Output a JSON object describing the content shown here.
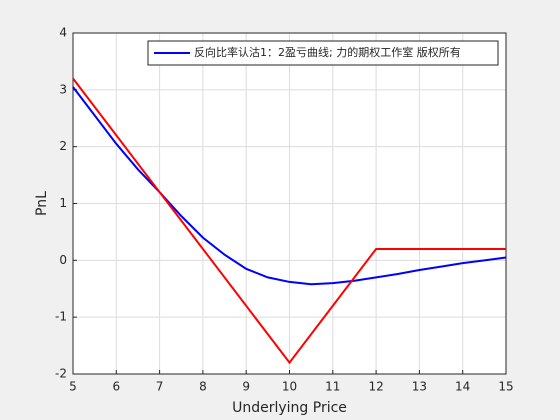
{
  "chart_data": {
    "type": "line",
    "xlabel": "Underlying Price",
    "ylabel": "PnL",
    "xlim": [
      5,
      15
    ],
    "xticks": [
      5,
      6,
      7,
      8,
      9,
      10,
      11,
      12,
      13,
      14,
      15
    ],
    "ylim": [
      -2,
      4
    ],
    "yticks": [
      -2,
      -1,
      0,
      1,
      2,
      3,
      4
    ],
    "grid": true,
    "legend": "upper right",
    "series": [
      {
        "name": "反向比率认沽1：2盈亏曲线; 力的期权工作室 版权所有",
        "color": "#0000ff",
        "x": [
          5,
          5.5,
          6,
          6.5,
          7,
          7.5,
          8,
          8.5,
          9,
          9.5,
          10,
          10.5,
          11,
          11.5,
          12,
          12.5,
          13,
          13.5,
          14,
          14.5,
          15
        ],
        "values": [
          3.05,
          2.55,
          2.05,
          1.6,
          1.2,
          0.78,
          0.4,
          0.1,
          -0.15,
          -0.3,
          -0.38,
          -0.42,
          -0.4,
          -0.36,
          -0.3,
          -0.24,
          -0.17,
          -0.11,
          -0.05,
          0.0,
          0.05
        ]
      },
      {
        "color": "#ff0000",
        "x": [
          5,
          10,
          12,
          15
        ],
        "values": [
          3.2,
          -1.8,
          0.2,
          0.2
        ]
      }
    ]
  }
}
